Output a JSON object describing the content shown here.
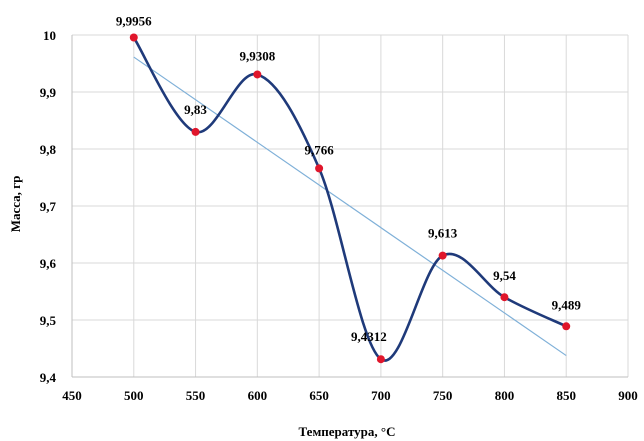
{
  "chart_data": {
    "type": "scatter",
    "xlabel": "Температура, °С",
    "ylabel": "Масса, гр",
    "xlim": [
      450,
      900
    ],
    "ylim": [
      9.4,
      10
    ],
    "x_ticks": [
      "450",
      "500",
      "550",
      "600",
      "650",
      "700",
      "750",
      "800",
      "850",
      "900"
    ],
    "y_ticks": [
      "9,4",
      "9,5",
      "9,6",
      "9,7",
      "9,8",
      "9,9",
      "10"
    ],
    "grid": true,
    "legend": "none",
    "series": [
      {
        "x": [
          500,
          550,
          600,
          650,
          700,
          750,
          800,
          850
        ],
        "y": [
          9.9956,
          9.83,
          9.9308,
          9.766,
          9.4312,
          9.613,
          9.54,
          9.489
        ],
        "labels": [
          "9,9956",
          "9,83",
          "9,9308",
          "9,766",
          "9,4312",
          "9,613",
          "9,54",
          "9,489"
        ],
        "line": "smooth",
        "line_color": "#1f3a7a",
        "marker_color": "#e0162b",
        "trendline": "linear",
        "trendline_color": "#7fb0d8"
      }
    ]
  }
}
